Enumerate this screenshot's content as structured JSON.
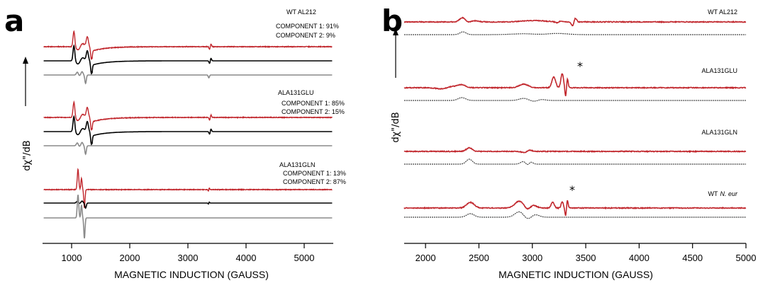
{
  "chart_data": [
    {
      "panel": "a",
      "type": "line",
      "xlabel": "MAGNETIC INDUCTION (GAUSS)",
      "ylabel": "dχ\"/dB",
      "xlim": [
        500,
        5500
      ],
      "xticks": [
        1000,
        2000,
        3000,
        4000,
        5000
      ],
      "colors": {
        "fit": "#c1272d",
        "component1": "#000000",
        "component2": "#8a8a8a"
      },
      "groups": [
        {
          "label": "WT AL212",
          "annotations": [
            "COMPONENT 1: 91%",
            "COMPONENT 2: 9%"
          ]
        },
        {
          "label": "ALA131GLU",
          "annotations": [
            "COMPONENT 1: 85%",
            "COMPONENT 2: 15%"
          ]
        },
        {
          "label": "ALA131GLN",
          "annotations": [
            "COMPONENT 1: 13%",
            "COMPONENT 2: 87%"
          ]
        }
      ]
    },
    {
      "panel": "b",
      "type": "line",
      "xlabel": "MAGNETIC INDUCTION (GAUSS)",
      "ylabel": "dχ\"/dB",
      "xlim": [
        1800,
        5000
      ],
      "xticks": [
        2000,
        2500,
        3000,
        3500,
        4000,
        4500,
        5000
      ],
      "colors": {
        "spectrum": "#c1272d",
        "simulation": "#444444"
      },
      "traces": [
        {
          "label": "WT AL212",
          "label_italic": "",
          "star": ""
        },
        {
          "label": "ALA131GLU",
          "label_italic": "",
          "star": "*"
        },
        {
          "label": "ALA131GLN",
          "label_italic": "",
          "star": ""
        },
        {
          "label": "WT",
          "label_italic": "N. eur",
          "star": "*"
        }
      ]
    }
  ],
  "panels": {
    "a": "a",
    "b": "b"
  }
}
